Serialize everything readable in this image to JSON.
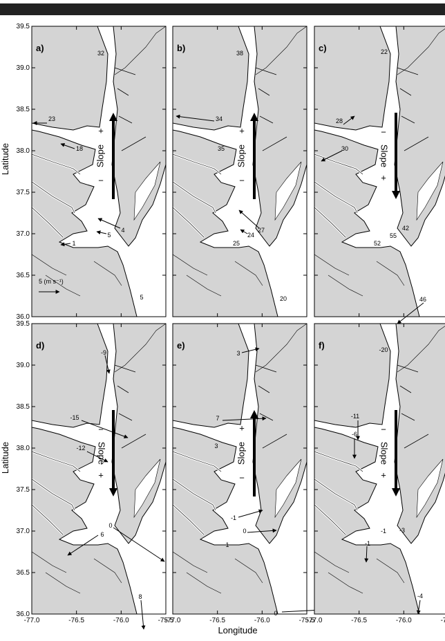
{
  "axes": {
    "xlabel": "Longitude",
    "ylabel": "Latitude",
    "xlim": [
      -77.0,
      -75.5
    ],
    "xticks": [
      {
        "value": -77.0,
        "label": "-77.0"
      },
      -76.5,
      {
        "value": -76.0,
        "label": "-76.0"
      },
      -75.5
    ],
    "ylim": [
      36.0,
      39.5
    ],
    "yticks": [
      39.5,
      {
        "value": 39.0,
        "label": "39.0"
      },
      38.5,
      {
        "value": 38.0,
        "label": "38.0"
      },
      37.5,
      {
        "value": 37.0,
        "label": "37.0"
      },
      36.5,
      {
        "value": 36.0,
        "label": "36.0"
      }
    ]
  },
  "panels": [
    {
      "label": "a)",
      "vectors": [
        "32",
        "23",
        "18",
        "4",
        "5",
        "1",
        "5"
      ],
      "slope": {
        "text": "Slope",
        "plus": "+",
        "minus": "−",
        "direction": "up"
      },
      "scale": "5 (m s⁻¹)"
    },
    {
      "label": "b)",
      "vectors": [
        "38",
        "34",
        "35",
        "27",
        "24",
        "25",
        "20"
      ],
      "slope": {
        "text": "Slope",
        "plus": "+",
        "minus": "−",
        "direction": "up"
      }
    },
    {
      "label": "c)",
      "vectors": [
        "22",
        "28",
        "30",
        "42",
        "55",
        "52",
        "46"
      ],
      "slope": {
        "text": "Slope",
        "plus": "+",
        "minus": "−",
        "direction": "down"
      }
    },
    {
      "label": "d)",
      "vectors": [
        "-9",
        "-15",
        "-12",
        "0",
        "6",
        "8"
      ],
      "slope": {
        "text": "Slope",
        "plus": "+",
        "minus": "−",
        "direction": "down"
      }
    },
    {
      "label": "e)",
      "vectors": [
        "3",
        "7",
        "3",
        "-1",
        "0",
        "1",
        "0"
      ],
      "slope": {
        "text": "Slope",
        "plus": "+",
        "minus": "−",
        "direction": "up"
      }
    },
    {
      "label": "f)",
      "vectors": [
        "-20",
        "-11",
        "-6",
        "-1",
        "-3",
        "-1",
        "-4"
      ],
      "slope": {
        "text": "Slope",
        "plus": "+",
        "minus": "−",
        "direction": "down"
      }
    }
  ]
}
